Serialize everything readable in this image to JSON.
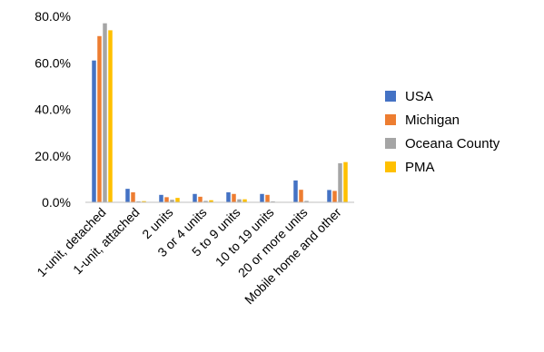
{
  "chart_data": {
    "type": "bar",
    "title": "",
    "xlabel": "",
    "ylabel": "",
    "ylim": [
      0,
      80
    ],
    "y_ticks": [
      "0.0%",
      "20.0%",
      "40.0%",
      "60.0%",
      "80.0%"
    ],
    "grid": false,
    "legend_position": "right",
    "categories": [
      "1-unit, detached",
      "1-unit, attached",
      "2 units",
      "3 or 4 units",
      "5 to 9 units",
      "10 to 19 units",
      "20 or more units",
      "Mobile home and other"
    ],
    "series": [
      {
        "name": "USA",
        "color": "#4472C4",
        "values": [
          61.0,
          5.8,
          3.2,
          3.6,
          4.3,
          3.6,
          9.4,
          5.3
        ]
      },
      {
        "name": "Michigan",
        "color": "#ED7D31",
        "values": [
          71.5,
          4.3,
          2.2,
          2.4,
          3.6,
          3.2,
          5.4,
          4.9
        ]
      },
      {
        "name": "Oceana County",
        "color": "#A5A5A5",
        "values": [
          77.0,
          0.4,
          1.1,
          0.6,
          1.3,
          0.4,
          0.6,
          16.8
        ]
      },
      {
        "name": "PMA",
        "color": "#FFC000",
        "values": [
          74.0,
          0.5,
          1.9,
          0.9,
          1.3,
          0.2,
          0.2,
          17.3
        ]
      }
    ]
  }
}
